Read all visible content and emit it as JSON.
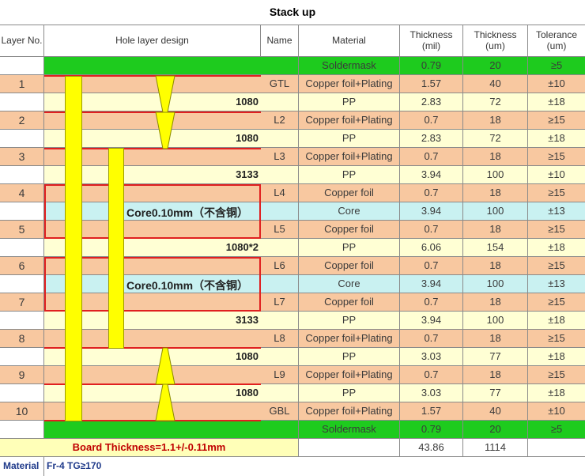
{
  "title": "Stack up",
  "headers": {
    "layer_no": "Layer No.",
    "hole_design": "Hole layer design",
    "name": "Name",
    "material": "Material",
    "thickness_mil": "Thickness\n(mil)",
    "thickness_um": "Thickness\n(um)",
    "tolerance": "Tolerance\n(um)"
  },
  "rows": [
    {
      "layer": "",
      "pp": "",
      "name": "",
      "material": "Soldermask",
      "mil": "0.79",
      "um": "20",
      "tol": "≥5",
      "kind": "mask"
    },
    {
      "layer": "1",
      "pp": "",
      "name": "GTL",
      "material": "Copper foil+Plating",
      "mil": "1.57",
      "um": "40",
      "tol": "±10",
      "kind": "copper"
    },
    {
      "layer": "",
      "pp": "1080",
      "name": "",
      "material": "PP",
      "mil": "2.83",
      "um": "72",
      "tol": "±18",
      "kind": "pp"
    },
    {
      "layer": "2",
      "pp": "",
      "name": "L2",
      "material": "Copper foil+Plating",
      "mil": "0.7",
      "um": "18",
      "tol": "≥15",
      "kind": "copper"
    },
    {
      "layer": "",
      "pp": "1080",
      "name": "",
      "material": "PP",
      "mil": "2.83",
      "um": "72",
      "tol": "±18",
      "kind": "pp"
    },
    {
      "layer": "3",
      "pp": "",
      "name": "L3",
      "material": "Copper foil+Plating",
      "mil": "0.7",
      "um": "18",
      "tol": "≥15",
      "kind": "copper"
    },
    {
      "layer": "",
      "pp": "3133",
      "name": "",
      "material": "PP",
      "mil": "3.94",
      "um": "100",
      "tol": "±10",
      "kind": "pp"
    },
    {
      "layer": "4",
      "pp": "",
      "name": "L4",
      "material": "Copper foil",
      "mil": "0.7",
      "um": "18",
      "tol": "≥15",
      "kind": "copper"
    },
    {
      "layer": "",
      "pp": "",
      "name": "",
      "material": "Core",
      "mil": "3.94",
      "um": "100",
      "tol": "±13",
      "kind": "core"
    },
    {
      "layer": "5",
      "pp": "",
      "name": "L5",
      "material": "Copper foil",
      "mil": "0.7",
      "um": "18",
      "tol": "≥15",
      "kind": "copper"
    },
    {
      "layer": "",
      "pp": "1080*2",
      "name": "",
      "material": "PP",
      "mil": "6.06",
      "um": "154",
      "tol": "±18",
      "kind": "pp"
    },
    {
      "layer": "6",
      "pp": "",
      "name": "L6",
      "material": "Copper foil",
      "mil": "0.7",
      "um": "18",
      "tol": "≥15",
      "kind": "copper"
    },
    {
      "layer": "",
      "pp": "",
      "name": "",
      "material": "Core",
      "mil": "3.94",
      "um": "100",
      "tol": "±13",
      "kind": "core"
    },
    {
      "layer": "7",
      "pp": "",
      "name": "L7",
      "material": "Copper foil",
      "mil": "0.7",
      "um": "18",
      "tol": "≥15",
      "kind": "copper"
    },
    {
      "layer": "",
      "pp": "3133",
      "name": "",
      "material": "PP",
      "mil": "3.94",
      "um": "100",
      "tol": "±18",
      "kind": "pp"
    },
    {
      "layer": "8",
      "pp": "",
      "name": "L8",
      "material": "Copper foil+Plating",
      "mil": "0.7",
      "um": "18",
      "tol": "≥15",
      "kind": "copper"
    },
    {
      "layer": "",
      "pp": "1080",
      "name": "",
      "material": "PP",
      "mil": "3.03",
      "um": "77",
      "tol": "±18",
      "kind": "pp"
    },
    {
      "layer": "9",
      "pp": "",
      "name": "L9",
      "material": "Copper foil+Plating",
      "mil": "0.7",
      "um": "18",
      "tol": "≥15",
      "kind": "copper"
    },
    {
      "layer": "",
      "pp": "1080",
      "name": "",
      "material": "PP",
      "mil": "3.03",
      "um": "77",
      "tol": "±18",
      "kind": "pp"
    },
    {
      "layer": "10",
      "pp": "",
      "name": "GBL",
      "material": "Copper foil+Plating",
      "mil": "1.57",
      "um": "40",
      "tol": "±10",
      "kind": "copper"
    },
    {
      "layer": "",
      "pp": "",
      "name": "",
      "material": "Soldermask",
      "mil": "0.79",
      "um": "20",
      "tol": "≥5",
      "kind": "mask"
    }
  ],
  "core_labels": [
    "Core0.10mm（不含铜）",
    "Core0.10mm（不含铜）"
  ],
  "footer": {
    "board_thickness": "Board Thickness=1.1+/-0.11mm",
    "total_mil": "43.86",
    "total_um": "1114",
    "material_label": "Material",
    "material_value": "Fr-4  TG≥170"
  },
  "colors": {
    "mask": "#1ecb1e",
    "copper": "#f8c8a0",
    "pp": "#ffffd4",
    "core": "#c9f1f1",
    "footer_yellow": "#ffffb8",
    "red": "#e02020",
    "hole": "#ffff00"
  }
}
